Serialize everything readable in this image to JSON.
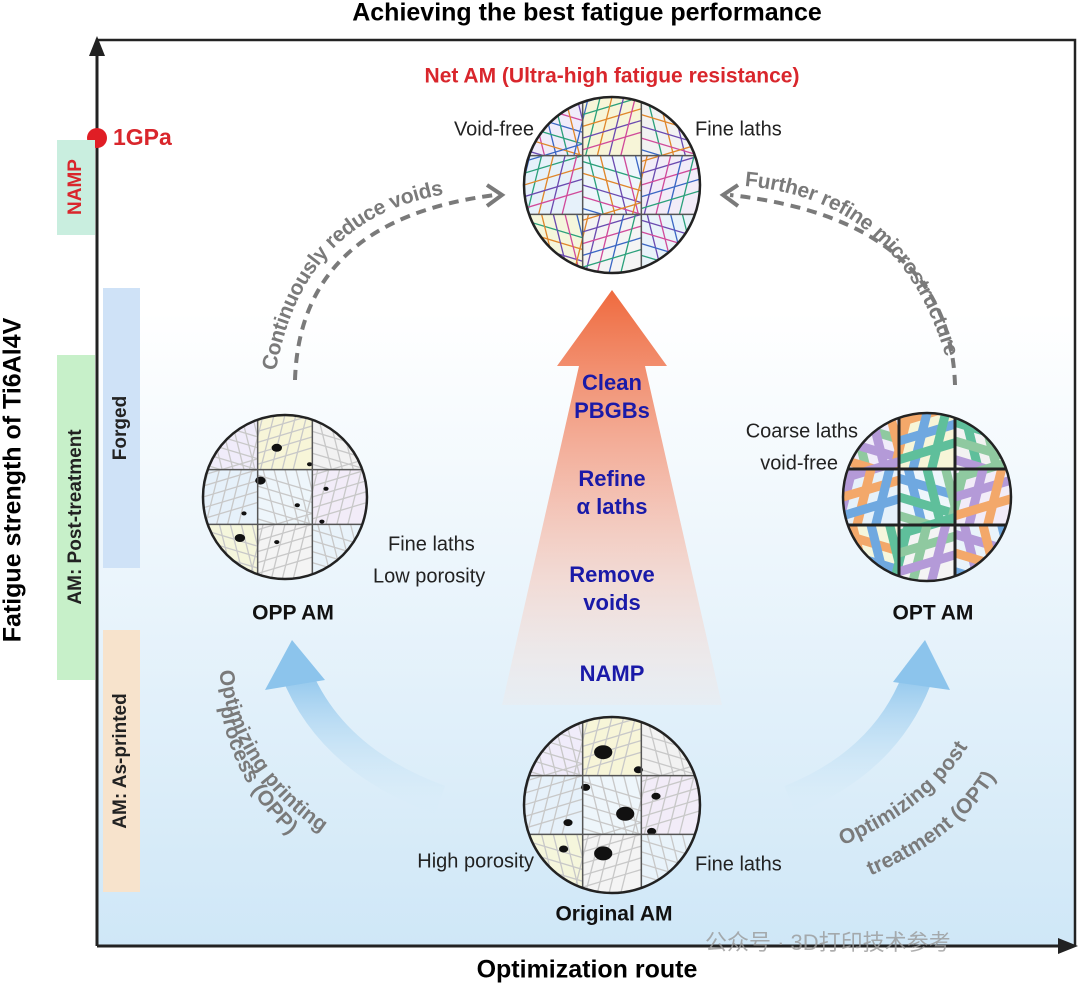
{
  "title": "Achieving the best fatigue performance",
  "x_axis_label": "Optimization route",
  "y_axis_label": "Fatigue strength of Ti6Al4V",
  "marker_label": "1GPa",
  "bands": [
    "NAMP",
    "Forged",
    "AM: Post-treatment",
    "AM: As-printed"
  ],
  "nodes": [
    {
      "label": "Net AM (Ultra-high fatigue resistance)",
      "notes": [
        "Void-free",
        "Fine laths"
      ]
    },
    {
      "label": "OPP AM",
      "notes": [
        "Fine laths",
        "Low porosity"
      ]
    },
    {
      "label": "OPT AM",
      "notes": [
        "Coarse laths",
        "void-free"
      ]
    },
    {
      "label": "Original AM",
      "notes": [
        "High porosity",
        "Fine laths"
      ]
    }
  ],
  "arrows": [
    {
      "lines": [
        "Continuously reduce voids"
      ]
    },
    {
      "lines": [
        "Further refine microstructure"
      ]
    },
    {
      "lines": [
        "Optimizing printing",
        "process (OPP)"
      ]
    },
    {
      "lines": [
        "Optimizing post",
        "treatment (OPT)"
      ]
    }
  ],
  "center_steps": [
    {
      "lines": [
        "Clean",
        "PBGBs"
      ]
    },
    {
      "lines": [
        "Refine",
        "α laths"
      ]
    },
    {
      "lines": [
        "Remove",
        "voids"
      ]
    },
    {
      "lines": [
        "NAMP"
      ]
    }
  ],
  "watermark": "公众号 · 3D打印技术参考"
}
